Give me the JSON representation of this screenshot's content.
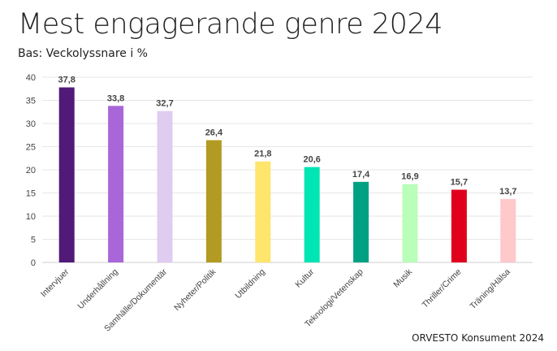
{
  "chart_data": {
    "type": "bar",
    "title": "Mest engagerande genre 2024",
    "subtitle": "Bas: Veckolyssnare i %",
    "source": "ORVESTO Konsument 2024",
    "categories": [
      "Intervjuer",
      "Underhållning",
      "Samhälle/Dokumentär",
      "Nyheter/Politik",
      "Utbildning",
      "Kultur",
      "Teknologi/Vetenskap",
      "Musik",
      "Thriller/Crime",
      "Träning/Hälsa"
    ],
    "values": [
      37.8,
      33.8,
      32.7,
      26.4,
      21.8,
      20.6,
      17.4,
      16.9,
      15.7,
      13.7
    ],
    "value_labels": [
      "37,8",
      "33,8",
      "32,7",
      "26,4",
      "21,8",
      "20,6",
      "17,4",
      "16,9",
      "15,7",
      "13,7"
    ],
    "colors": [
      "#521A78",
      "#A966D8",
      "#E0CCF0",
      "#B39A22",
      "#FEE56C",
      "#00E5B4",
      "#00A183",
      "#B9FEB9",
      "#E0001B",
      "#FFC8CB"
    ],
    "ylim": [
      0,
      40
    ],
    "yticks": [
      "0",
      "5",
      "10",
      "15",
      "20",
      "25",
      "30",
      "35",
      "40"
    ],
    "grid": true,
    "legend": "none"
  }
}
